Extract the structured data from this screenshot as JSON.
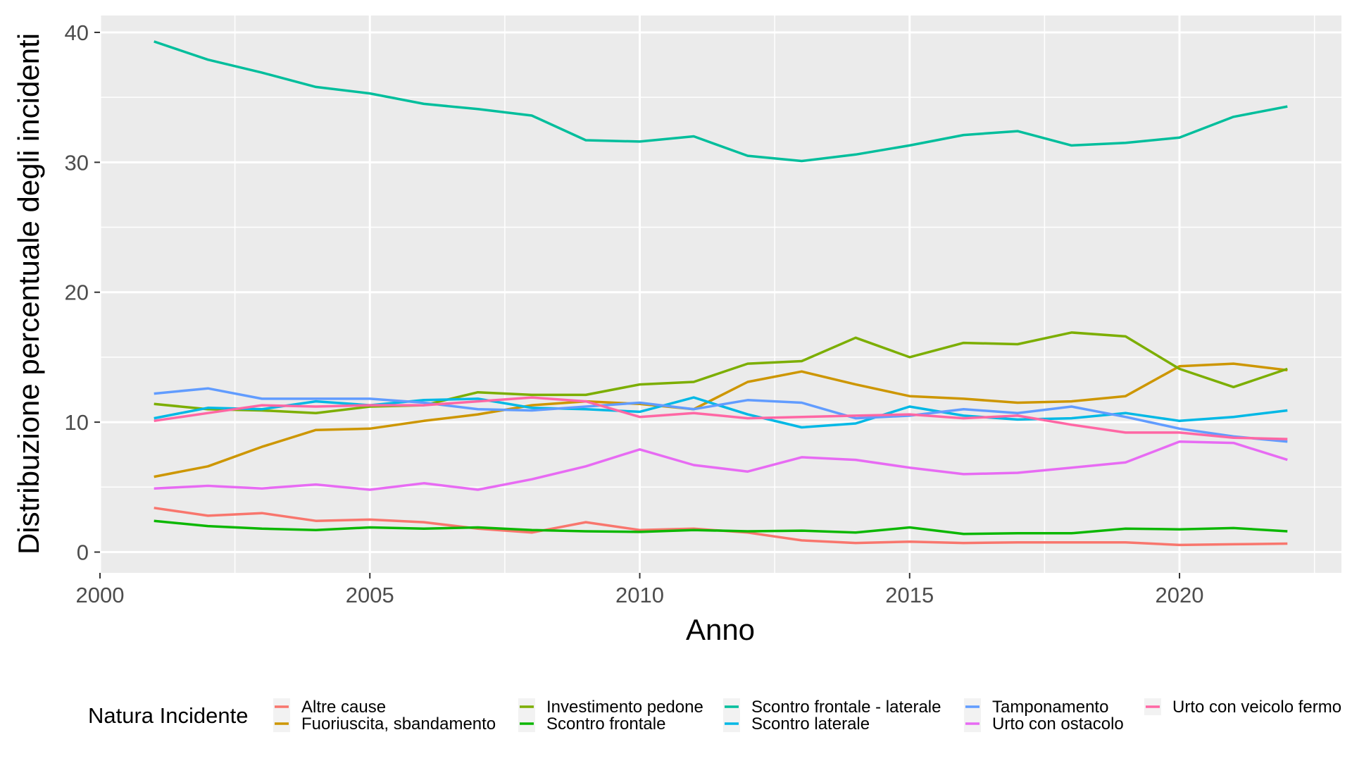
{
  "chart_data": {
    "type": "line",
    "xlabel": "Anno",
    "ylabel": "Distribuzione percentuale degli incidenti",
    "xlim": [
      2000,
      2023
    ],
    "ylim": [
      -1.6,
      41.3
    ],
    "x_ticks": [
      2000,
      2005,
      2010,
      2015,
      2020
    ],
    "y_ticks": [
      0,
      10,
      20,
      30,
      40
    ],
    "grid": true,
    "legend": {
      "title": "Natura Incidente",
      "position": "bottom"
    },
    "x": [
      2001,
      2002,
      2003,
      2004,
      2005,
      2006,
      2007,
      2008,
      2009,
      2010,
      2011,
      2012,
      2013,
      2014,
      2015,
      2016,
      2017,
      2018,
      2019,
      2020,
      2021,
      2022
    ],
    "series": [
      {
        "name": "Altre cause",
        "color": "#F8766D",
        "values": [
          3.4,
          2.8,
          3.0,
          2.4,
          2.5,
          2.3,
          1.8,
          1.5,
          2.3,
          1.7,
          1.8,
          1.5,
          0.9,
          0.7,
          0.8,
          0.7,
          0.75,
          0.75,
          0.75,
          0.55,
          0.6,
          0.65
        ]
      },
      {
        "name": "Fuoriuscita, sbandamento",
        "color": "#CD9600",
        "values": [
          5.8,
          6.6,
          8.1,
          9.4,
          9.5,
          10.1,
          10.6,
          11.3,
          11.6,
          11.4,
          11.0,
          13.1,
          13.9,
          12.9,
          12.0,
          11.8,
          11.5,
          11.6,
          12.0,
          14.3,
          14.5,
          14.0
        ]
      },
      {
        "name": "Investimento pedone",
        "color": "#7CAE00",
        "values": [
          11.4,
          11.0,
          10.9,
          10.7,
          11.2,
          11.3,
          12.3,
          12.1,
          12.1,
          12.9,
          13.1,
          14.5,
          14.7,
          16.5,
          15.0,
          16.1,
          16.0,
          16.9,
          16.6,
          14.1,
          12.7,
          14.1
        ]
      },
      {
        "name": "Scontro frontale",
        "color": "#0CB702",
        "values": [
          2.4,
          2.0,
          1.8,
          1.7,
          1.9,
          1.8,
          1.9,
          1.7,
          1.6,
          1.55,
          1.7,
          1.6,
          1.65,
          1.5,
          1.9,
          1.4,
          1.45,
          1.45,
          1.8,
          1.75,
          1.85,
          1.6
        ]
      },
      {
        "name": "Scontro frontale - laterale",
        "color": "#00BE9C",
        "values": [
          39.3,
          37.9,
          36.9,
          35.8,
          35.3,
          34.5,
          34.1,
          33.6,
          31.7,
          31.6,
          32.0,
          30.5,
          30.1,
          30.6,
          31.3,
          32.1,
          32.4,
          31.3,
          31.5,
          31.9,
          33.5,
          34.3
        ]
      },
      {
        "name": "Scontro laterale",
        "color": "#00B8E5",
        "values": [
          10.3,
          11.1,
          11.0,
          11.6,
          11.3,
          11.7,
          11.8,
          11.1,
          11.0,
          10.8,
          11.9,
          10.6,
          9.6,
          9.9,
          11.2,
          10.5,
          10.2,
          10.3,
          10.7,
          10.1,
          10.4,
          10.9
        ]
      },
      {
        "name": "Tamponamento",
        "color": "#619CFF",
        "values": [
          12.2,
          12.6,
          11.8,
          11.8,
          11.8,
          11.5,
          11.0,
          10.9,
          11.2,
          11.5,
          11.0,
          11.7,
          11.5,
          10.3,
          10.5,
          11.0,
          10.7,
          11.2,
          10.4,
          9.5,
          8.9,
          8.5
        ]
      },
      {
        "name": "Urto con ostacolo",
        "color": "#E76BF3",
        "values": [
          4.9,
          5.1,
          4.9,
          5.2,
          4.8,
          5.3,
          4.8,
          5.6,
          6.6,
          7.9,
          6.7,
          6.2,
          7.3,
          7.1,
          6.5,
          6.0,
          6.1,
          6.5,
          6.9,
          8.5,
          8.4,
          7.1
        ]
      },
      {
        "name": "Urto con veicolo fermo",
        "color": "#FF67A4",
        "values": [
          10.1,
          10.7,
          11.3,
          11.2,
          11.3,
          11.3,
          11.6,
          11.9,
          11.6,
          10.4,
          10.7,
          10.3,
          10.4,
          10.5,
          10.6,
          10.3,
          10.5,
          9.8,
          9.2,
          9.2,
          8.8,
          8.7
        ]
      }
    ]
  }
}
